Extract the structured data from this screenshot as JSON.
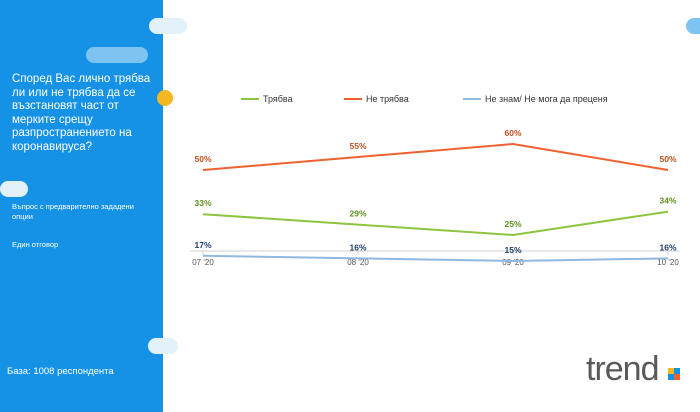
{
  "sidebar": {
    "question": "Според Вас лично трябва ли или не трябва да се възстановят част от мерките срещу разпространението на коронавируса?",
    "note": "Въпрос с предварително зададени опции",
    "answer_type": "Един отговор",
    "base": "База: 1008 респондента"
  },
  "brand": {
    "logo_text": "trend",
    "accent": "#1592e6"
  },
  "chart_data": {
    "type": "line",
    "categories": [
      "07 '20",
      "08 '20",
      "09 '20",
      "10 '20"
    ],
    "series": [
      {
        "name": "Трябва",
        "values": [
          33,
          29,
          25,
          34
        ],
        "color": "#8cc63f",
        "label_color": "#5f8f1e",
        "labels": [
          "33%",
          "29%",
          "25%",
          "34%"
        ]
      },
      {
        "name": "Не трябва",
        "values": [
          50,
          55,
          60,
          50
        ],
        "color": "#f0612f",
        "label_color": "#c0501f",
        "labels": [
          "50%",
          "55%",
          "60%",
          "50%"
        ]
      },
      {
        "name": "Не знам/ Не мога да преценя",
        "values": [
          17,
          16,
          15,
          16
        ],
        "color": "#8fb9e0",
        "label_color": "#1f3f6b",
        "labels": [
          "17%",
          "16%",
          "15%",
          "16%"
        ]
      }
    ],
    "ylim": [
      0,
      70
    ]
  }
}
